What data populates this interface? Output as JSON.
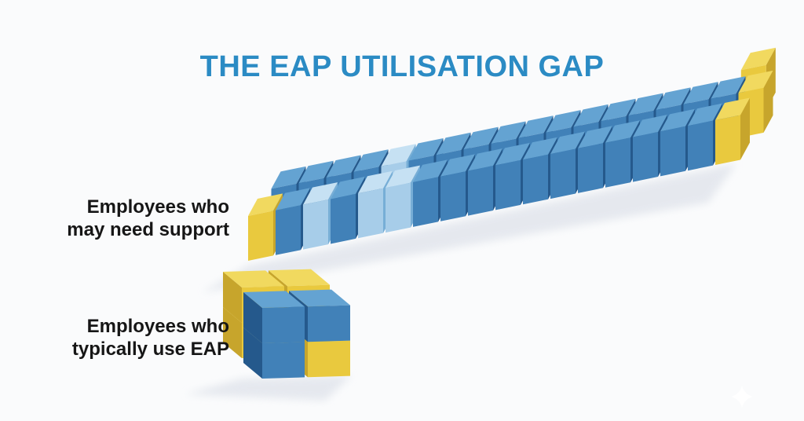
{
  "page": {
    "background": "#fafbfc"
  },
  "title": {
    "text": "THE EAP UTILISATION GAP",
    "color": "#2b8bc4"
  },
  "labels": {
    "bar": {
      "line1": "Employees who",
      "line2": "may need support"
    },
    "cluster": {
      "line1": "Employees who",
      "line2": "typically use EAP"
    }
  },
  "palette": {
    "blue": {
      "front": "#4181b8",
      "top": "#64a3d2",
      "side": "#25598c"
    },
    "lightblue": {
      "front": "#a7cde9",
      "top": "#c6e1f3",
      "side": "#77aed6"
    },
    "yellow": {
      "front": "#e9c93e",
      "top": "#f1d95f",
      "side": "#c7a52c"
    }
  },
  "chart_data": {
    "type": "pictograph",
    "title": "THE EAP UTILISATION GAP",
    "legend": "isometric cube bar comparison; yellow end-cap cubes, blue body cubes",
    "series": [
      {
        "id": "support_bar",
        "label": "Employees who may need support",
        "cube_total": 37,
        "rows": [
          {
            "d": 2,
            "start": 17.25,
            "colors": [
              "yellow"
            ]
          },
          {
            "d": 1,
            "start": 0.5,
            "colors": [
              "blue",
              "blue",
              "blue",
              "blue",
              "lightblue",
              "blue",
              "blue",
              "blue",
              "blue",
              "blue",
              "blue",
              "blue",
              "blue",
              "blue",
              "blue",
              "blue",
              "blue",
              "yellow"
            ]
          },
          {
            "d": 0,
            "start": 0,
            "colors": [
              "yellow",
              "blue",
              "lightblue",
              "blue",
              "lightblue",
              "lightblue",
              "blue",
              "blue",
              "blue",
              "blue",
              "blue",
              "blue",
              "blue",
              "blue",
              "blue",
              "blue",
              "blue",
              "yellow"
            ]
          }
        ]
      },
      {
        "id": "eap_cluster",
        "label": "Employees who typically use EAP",
        "cube_total": 8,
        "cubes": [
          {
            "d": 1,
            "i": 0,
            "l": 0,
            "c": "yellow"
          },
          {
            "d": 1,
            "i": 0,
            "l": 1,
            "c": "yellow"
          },
          {
            "d": 1,
            "i": 1,
            "l": 0,
            "c": "yellow"
          },
          {
            "d": 1,
            "i": 1,
            "l": 1,
            "c": "yellow"
          },
          {
            "d": 0,
            "i": 0,
            "l": 0,
            "c": "blue"
          },
          {
            "d": 0,
            "i": 0,
            "l": 1,
            "c": "blue"
          },
          {
            "d": 0,
            "i": 1,
            "l": 0,
            "c": "yellow"
          },
          {
            "d": 0,
            "i": 1,
            "l": 1,
            "c": "blue"
          }
        ]
      }
    ]
  }
}
